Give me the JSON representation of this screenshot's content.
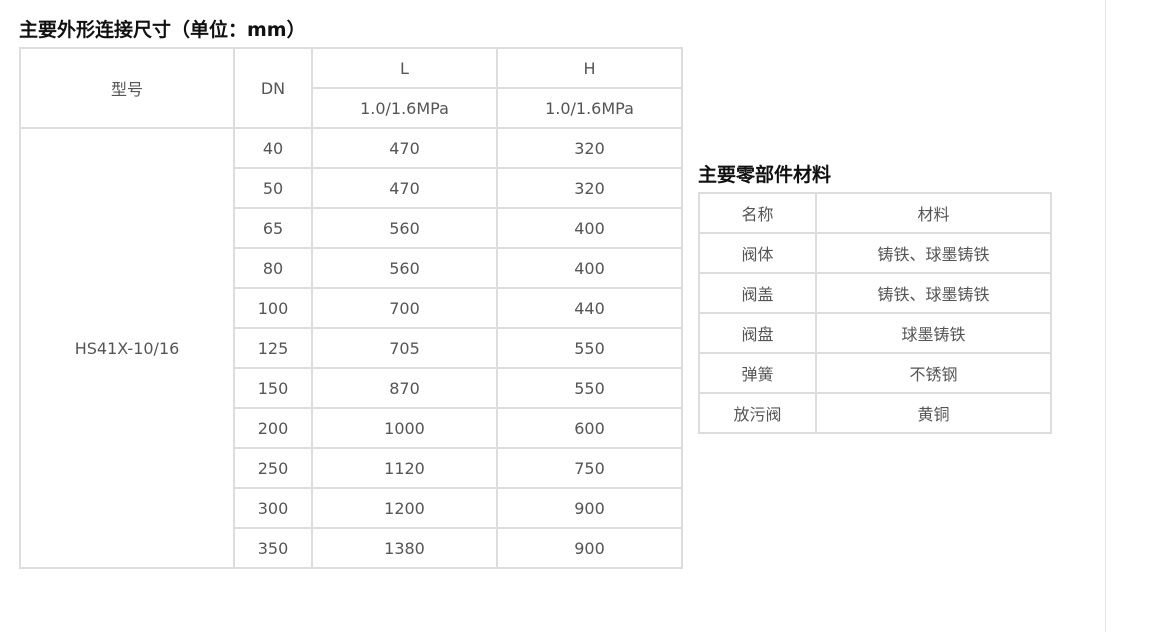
{
  "dimensions": {
    "title": "主要外形连接尺寸（单位：mm）",
    "header": {
      "model": "型号",
      "dn": "DN",
      "l": "L",
      "h": "H",
      "l_pressure": "1.0/1.6MPa",
      "h_pressure": "1.0/1.6MPa"
    },
    "model": "HS41X-10/16",
    "rows": [
      {
        "dn": "40",
        "l": "470",
        "h": "320"
      },
      {
        "dn": "50",
        "l": "470",
        "h": "320"
      },
      {
        "dn": "65",
        "l": "560",
        "h": "400"
      },
      {
        "dn": "80",
        "l": "560",
        "h": "400"
      },
      {
        "dn": "100",
        "l": "700",
        "h": "440"
      },
      {
        "dn": "125",
        "l": "705",
        "h": "550"
      },
      {
        "dn": "150",
        "l": "870",
        "h": "550"
      },
      {
        "dn": "200",
        "l": "1000",
        "h": "600"
      },
      {
        "dn": "250",
        "l": "1120",
        "h": "750"
      },
      {
        "dn": "300",
        "l": "1200",
        "h": "900"
      },
      {
        "dn": "350",
        "l": "1380",
        "h": "900"
      }
    ]
  },
  "materials": {
    "title": "主要零部件材料",
    "header": {
      "name": "名称",
      "material": "材料"
    },
    "rows": [
      {
        "name": "阀体",
        "material": "铸铁、球墨铸铁"
      },
      {
        "name": "阀盖",
        "material": "铸铁、球墨铸铁"
      },
      {
        "name": "阀盘",
        "material": "球墨铸铁"
      },
      {
        "name": "弹簧",
        "material": "不锈钢"
      },
      {
        "name": "放污阀",
        "material": "黄铜"
      }
    ]
  }
}
